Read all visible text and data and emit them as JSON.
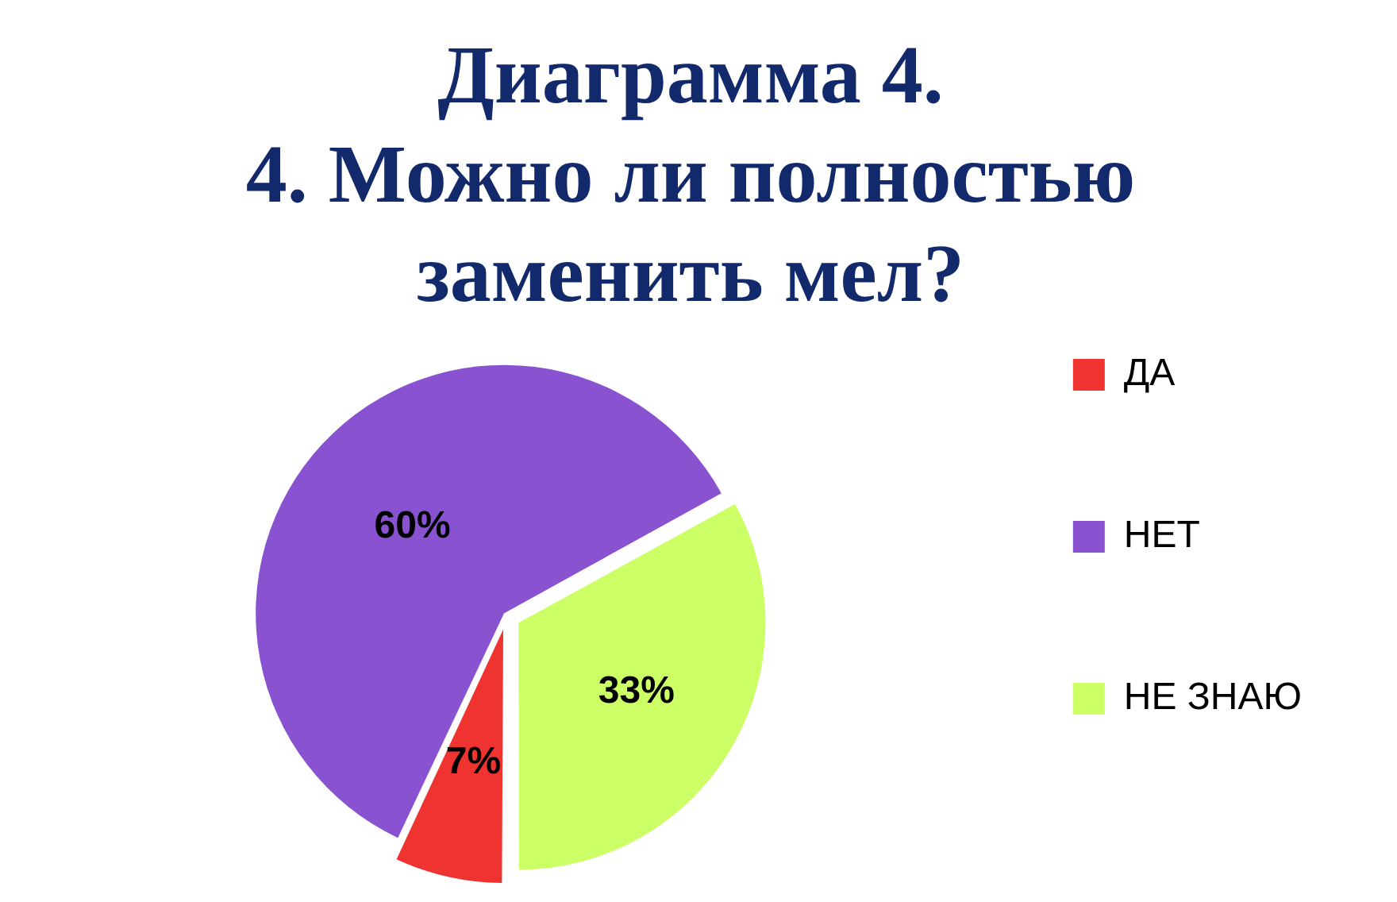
{
  "chart_data": {
    "type": "pie",
    "title": "Диаграмма 4.\n4. Можно ли полностью\nзаменить мел?",
    "categories": [
      "ДА",
      "НЕТ",
      "НЕ ЗНАЮ"
    ],
    "values": [
      7,
      60,
      33
    ],
    "colors": [
      "#ee3330",
      "#8852d0",
      "#ccff66"
    ],
    "value_labels": [
      "7%",
      "60%",
      "33%"
    ],
    "legend": "right"
  }
}
